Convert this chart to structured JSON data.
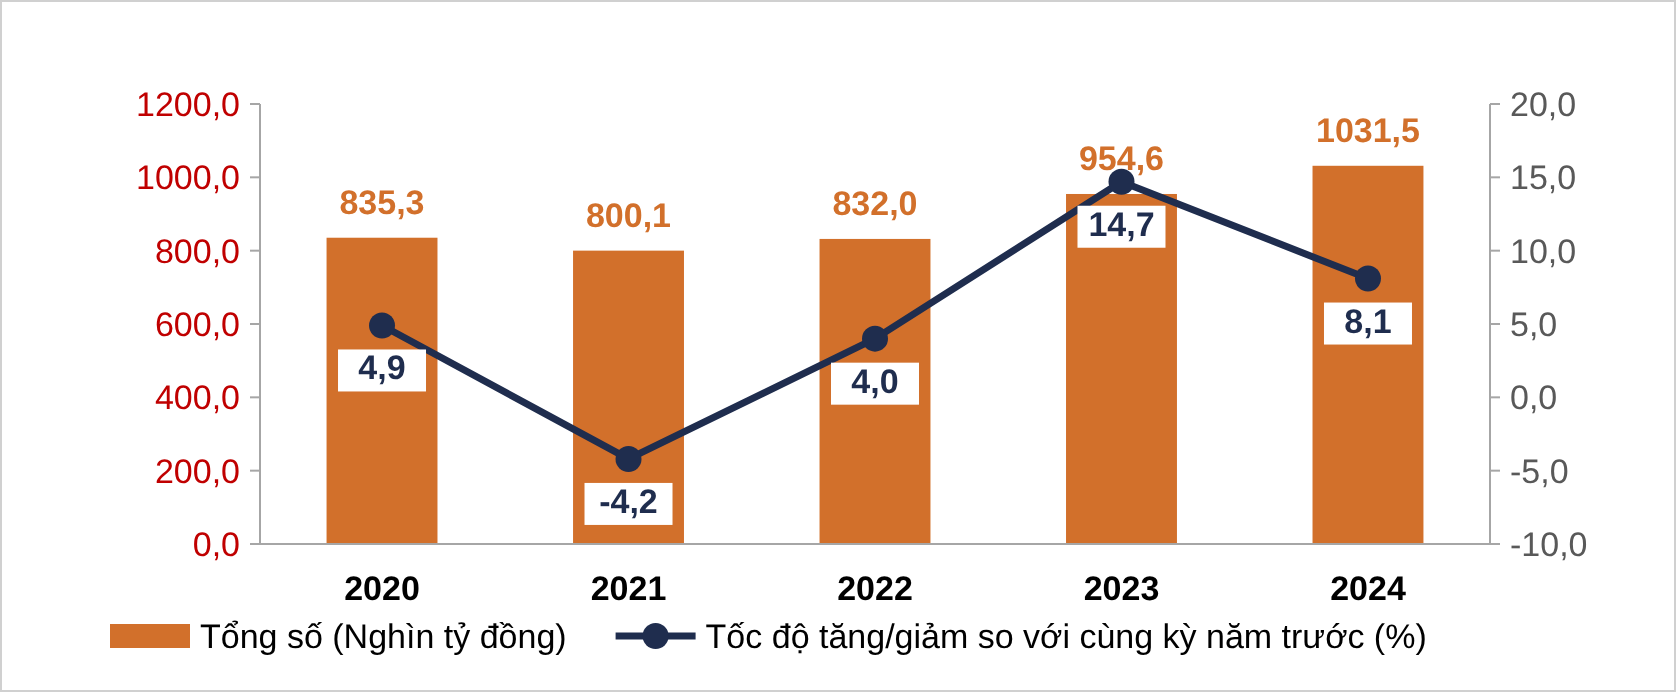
{
  "chart_data": {
    "type": "bar",
    "categories": [
      "2020",
      "2021",
      "2022",
      "2023",
      "2024"
    ],
    "series": [
      {
        "name": "Tổng số (Nghìn tỷ đồng)",
        "color": "#d2702b",
        "values": [
          835.3,
          800.1,
          832.0,
          954.6,
          1031.5
        ],
        "value_labels": [
          "835,3",
          "800,1",
          "832,0",
          "954,6",
          "1031,5"
        ]
      },
      {
        "name": "Tốc độ tăng/giảm so với cùng kỳ năm trước (%)",
        "type": "line",
        "axis": "y2",
        "color": "#1f2d4e",
        "values": [
          4.9,
          -4.2,
          4.0,
          14.7,
          8.1
        ],
        "value_labels": [
          "4,9",
          "-4,2",
          "4,0",
          "14,7",
          "8,1"
        ]
      }
    ],
    "ylim": [
      0,
      1200
    ],
    "yticks": [
      {
        "value": 0,
        "label": "0,0"
      },
      {
        "value": 200,
        "label": "200,0"
      },
      {
        "value": 400,
        "label": "400,0"
      },
      {
        "value": 600,
        "label": "600,0"
      },
      {
        "value": 800,
        "label": "800,0"
      },
      {
        "value": 1000,
        "label": "1000,0"
      },
      {
        "value": 1200,
        "label": "1200,0"
      }
    ],
    "y2lim": [
      -10,
      20
    ],
    "y2ticks": [
      {
        "value": -10,
        "label": "-10,0"
      },
      {
        "value": -5,
        "label": "-5,0"
      },
      {
        "value": 0,
        "label": "0,0"
      },
      {
        "value": 5,
        "label": "5,0"
      },
      {
        "value": 10,
        "label": "10,0"
      },
      {
        "value": 15,
        "label": "15,0"
      },
      {
        "value": 20,
        "label": "20,0"
      }
    ],
    "grid": false,
    "legend": "bottom",
    "marker": "circle",
    "line_style": "solid"
  }
}
